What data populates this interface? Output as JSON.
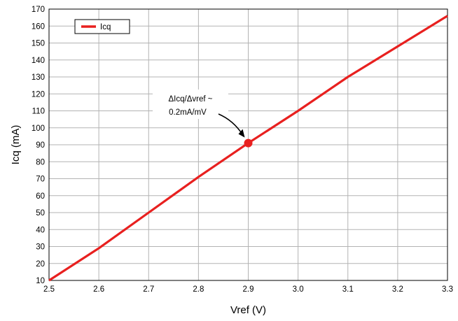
{
  "chart_data": {
    "type": "line",
    "xlabel": "Vref (V)",
    "ylabel": "Icq (mA)",
    "xlim": [
      2.5,
      3.3
    ],
    "ylim": [
      10,
      170
    ],
    "xticks": [
      "2.5",
      "2.6",
      "2.7",
      "2.8",
      "2.9",
      "3.0",
      "3.1",
      "3.2",
      "3.3"
    ],
    "yticks": [
      "10",
      "20",
      "30",
      "40",
      "50",
      "60",
      "70",
      "80",
      "90",
      "100",
      "110",
      "120",
      "130",
      "140",
      "150",
      "160",
      "170"
    ],
    "grid": true,
    "legend_position": "top-left",
    "series": [
      {
        "name": "Icq",
        "color": "#e8201f",
        "x": [
          2.5,
          2.6,
          2.7,
          2.8,
          2.9,
          3.0,
          3.1,
          3.2,
          3.3
        ],
        "y": [
          10,
          29,
          50,
          71,
          91,
          110,
          130,
          148,
          166
        ]
      }
    ],
    "marker": {
      "x": 2.9,
      "y": 91,
      "color": "#e8201f"
    },
    "annotation": {
      "line1": "ΔIcq/Δvref ~",
      "line2": "0.2mA/mV"
    }
  }
}
